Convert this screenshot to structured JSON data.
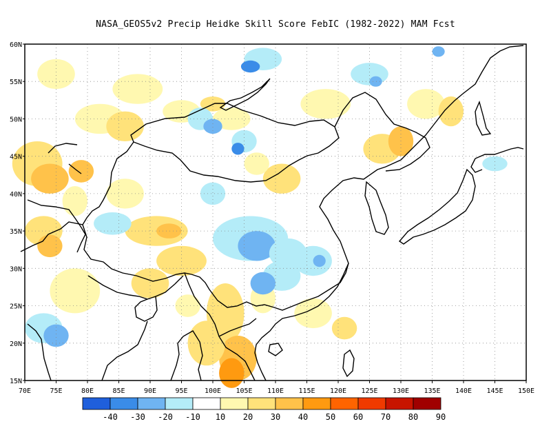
{
  "title": "NASA_GEOS5v2 Precip Heidke Skill Score FebIC (1982-2022) MAM Fcst",
  "map": {
    "lon_range": [
      70,
      150
    ],
    "lat_range": [
      15,
      60
    ],
    "lon_ticks": [
      "70E",
      "75E",
      "80E",
      "85E",
      "90E",
      "95E",
      "100E",
      "105E",
      "110E",
      "115E",
      "120E",
      "125E",
      "130E",
      "135E",
      "140E",
      "145E",
      "150E"
    ],
    "lat_ticks": [
      "15N",
      "20N",
      "25N",
      "30N",
      "35N",
      "40N",
      "45N",
      "50N",
      "55N",
      "60N"
    ],
    "grid": "dotted"
  },
  "colorbar": {
    "labels": [
      "-40",
      "-30",
      "-20",
      "-10",
      "10",
      "20",
      "30",
      "40",
      "50",
      "60",
      "70",
      "80",
      "90"
    ],
    "colors": [
      "#1f5fdc",
      "#3a8ce8",
      "#6fb4f2",
      "#b4ecf8",
      "#ffffff",
      "#fff8b0",
      "#ffe27a",
      "#ffc24a",
      "#ff9a10",
      "#ff6400",
      "#f03a00",
      "#c81400",
      "#a00000"
    ]
  },
  "regions": {
    "light_yellow": [
      "#fff8b0"
    ],
    "yellow": "#ffe27a",
    "orange": "#ffc24a",
    "deep_orange": "#ff9a10",
    "cyan": "#b4ecf8",
    "light_blue": "#6fb4f2",
    "mid_blue": "#3a8ce8"
  }
}
